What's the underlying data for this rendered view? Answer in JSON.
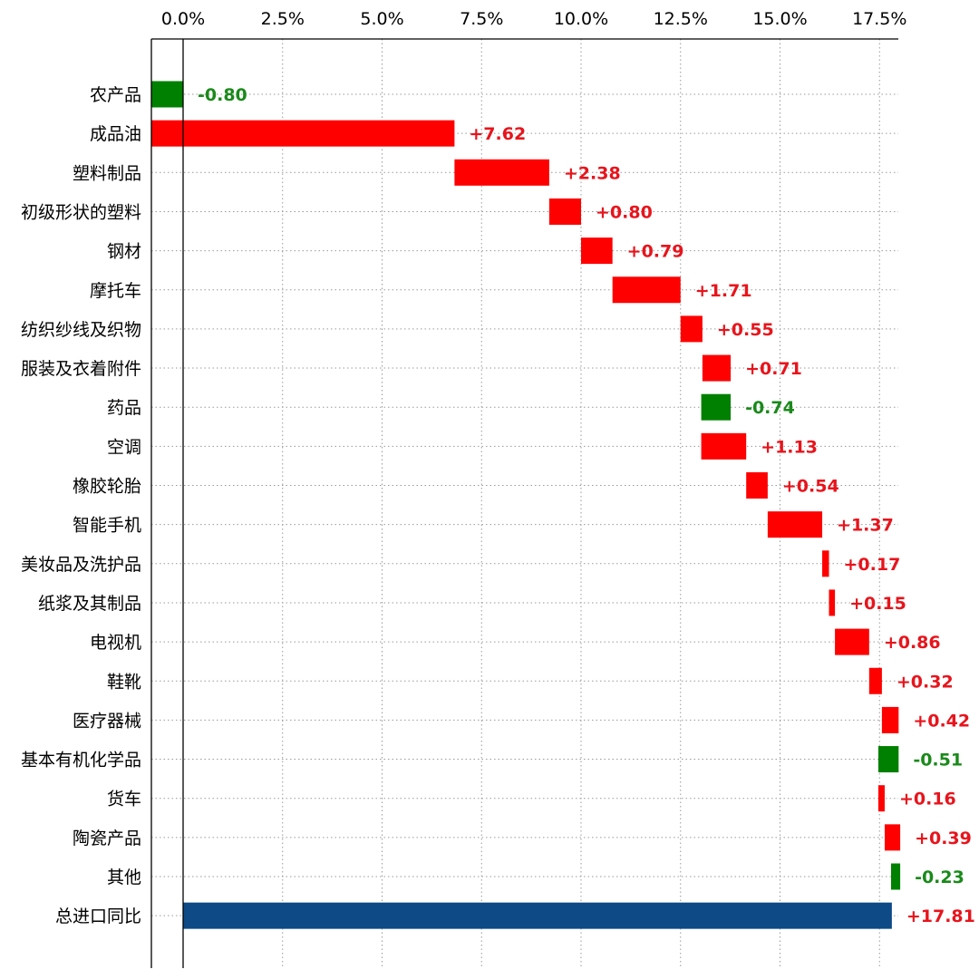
{
  "chart_data": {
    "type": "bar",
    "orientation": "horizontal",
    "variant": "waterfall",
    "title": "",
    "xlabel": "",
    "ylabel": "",
    "x_tick_labels": [
      "0.0%",
      "2.5%",
      "5.0%",
      "7.5%",
      "10.0%",
      "12.5%",
      "15.0%",
      "17.5%"
    ],
    "x_tick_values": [
      0,
      2.5,
      5,
      7.5,
      10,
      12.5,
      15,
      17.5
    ],
    "xlim": [
      -0.8,
      17.9
    ],
    "grid": "vertical dotted",
    "legend": "none",
    "colors": {
      "increase": "#ff0000",
      "decrease": "#008000",
      "total": "#0d4a86",
      "increase_label": "#e8141c",
      "decrease_label": "#1a8a1a"
    },
    "categories": [
      "农产品",
      "成品油",
      "塑料制品",
      "初级形状的塑料",
      "钢材",
      "摩托车",
      "纺织纱线及织物",
      "服装及衣着附件",
      "药品",
      "空调",
      "橡胶轮胎",
      "智能手机",
      "美妆品及洗护品",
      "纸浆及其制品",
      "电视机",
      "鞋靴",
      "医疗器械",
      "基本有机化学品",
      "货车",
      "陶瓷产品",
      "其他",
      "总进口同比"
    ],
    "values": [
      -0.8,
      7.62,
      2.38,
      0.8,
      0.79,
      1.71,
      0.55,
      0.71,
      -0.74,
      1.13,
      0.54,
      1.37,
      0.17,
      0.15,
      0.86,
      0.32,
      0.42,
      -0.51,
      0.16,
      0.39,
      -0.23,
      17.81
    ],
    "value_labels": [
      "-0.80",
      "+7.62",
      "+2.38",
      "+0.80",
      "+0.79",
      "+1.71",
      "+0.55",
      "+0.71",
      "-0.74",
      "+1.13",
      "+0.54",
      "+1.37",
      "+0.17",
      "+0.15",
      "+0.86",
      "+0.32",
      "+0.42",
      "-0.51",
      "+0.16",
      "+0.39",
      "-0.23",
      "+17.81"
    ],
    "is_total": [
      false,
      false,
      false,
      false,
      false,
      false,
      false,
      false,
      false,
      false,
      false,
      false,
      false,
      false,
      false,
      false,
      false,
      false,
      false,
      false,
      false,
      true
    ]
  }
}
